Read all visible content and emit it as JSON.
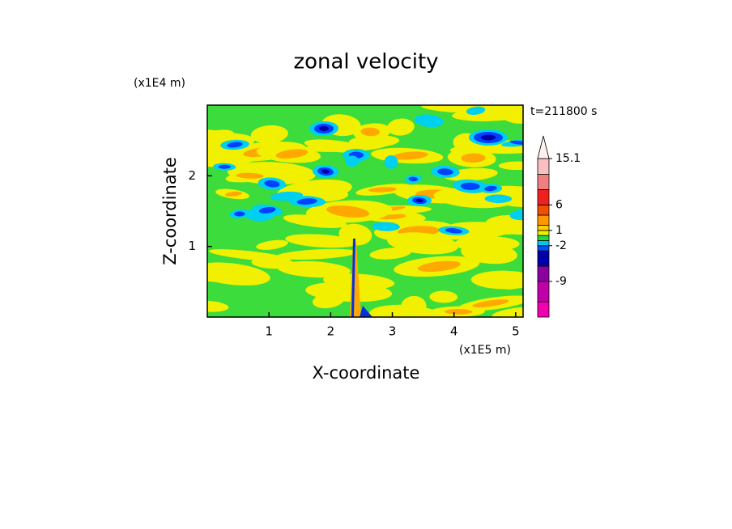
{
  "chart_data": {
    "type": "contour",
    "title": "zonal velocity",
    "x_label": "X-coordinate",
    "y_label": "Z-coordinate",
    "x_unit": "(x1E5 m)",
    "y_unit": "(x1E4 m)",
    "time_label": "t=211800 s",
    "xlim": [
      0,
      5.12
    ],
    "ylim": [
      0,
      3
    ],
    "xticks": [
      1,
      2,
      3,
      4,
      5
    ],
    "yticks": [
      1,
      2
    ],
    "colorbar": {
      "lim": [
        -16,
        15.1
      ],
      "levels": [
        -16,
        -13,
        -9,
        -6,
        -3,
        -2,
        -1,
        0,
        1,
        2,
        4,
        6,
        9,
        12,
        15.1
      ],
      "colors": [
        "#f000b0",
        "#c000a8",
        "#8a00a0",
        "#0000a8",
        "#0050ff",
        "#00c8f0",
        "#20d840",
        "#e8f000",
        "#ffd000",
        "#ff9800",
        "#f05000",
        "#f02020",
        "#f08080",
        "#f8c0c0"
      ],
      "ticks": [
        15.1,
        6,
        1,
        -2,
        -9
      ]
    }
  }
}
